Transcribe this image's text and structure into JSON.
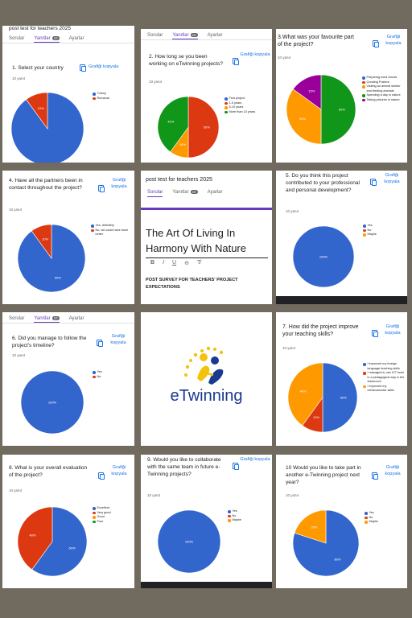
{
  "colors": {
    "blue": "#3366cc",
    "red": "#dc3912",
    "orange": "#ff9900",
    "green": "#109618",
    "purple": "#990099"
  },
  "card1": {
    "header": "post test for teachers 2025",
    "tabs": [
      "Sorular",
      "Yanıtlar",
      "Ayarlar"
    ],
    "badge": "10",
    "question": "1. Select your country",
    "grafik": "Grafiği kopyala",
    "points": "10 yanıt",
    "legend": [
      "Turkey",
      "Romania"
    ]
  },
  "card2": {
    "tabs": [
      "Sorular",
      "Yanıtlar",
      "Ayarlar"
    ],
    "badge": "10",
    "question": "2. How long se you been working on eTwinning projects?",
    "grafik": "Grafiği kopyala",
    "points": "10 yanıt",
    "legend": [
      "First project",
      "1-5 years",
      "5-10 years",
      "More than 10 years"
    ]
  },
  "card3": {
    "question": "3.What was your favourite part of the project?",
    "grafik": "Grafiği kopyala",
    "points": "10 yanıt",
    "legend": [
      "Preparing word clouds",
      "Creating Posters",
      "Visiting an animal shelter and feeding animals",
      "Spending a day in nature",
      "Taking pictures in nature"
    ]
  },
  "card4": {
    "question": "4. Have all the partners been in contact throughout the project?",
    "grafik": "Grafiği kopyala",
    "points": "10 yanıt",
    "legend": [
      "Yes, definitely",
      "No, we could have done better"
    ]
  },
  "card5": {
    "title": "post test for teachers 2025",
    "tabs": [
      "Sorular",
      "Yanıtlar",
      "Ayarlar"
    ],
    "badge": "10",
    "form_title": "The Art Of Living In Harmony With Nature",
    "toolbar": [
      "B",
      "I",
      "U",
      "⊖",
      "T̸"
    ],
    "description": "POST SURVEY FOR TEACHERS' PROJECT EXPECTATIONS"
  },
  "card6": {
    "question": "5. Do you think this project contributed to your professional and personal development?",
    "grafik": "Grafiği kopyala",
    "points": "10 yanıt",
    "legend": [
      "Yes",
      "No",
      "Maybe"
    ]
  },
  "card7": {
    "tabs": [
      "Sorular",
      "Yanıtlar",
      "Ayarlar"
    ],
    "badge": "10",
    "question": "6. Did you manage to follow the project's timeline?",
    "grafik": "Grafiği kopyala",
    "points": "10 yanıt",
    "legend": [
      "Yes",
      "No"
    ]
  },
  "card8": {
    "logo_text": "eTwinning"
  },
  "card9": {
    "question": "7. How did the project improve your teaching skills?",
    "grafik": "Grafiği kopyala",
    "points": "10 yanıt",
    "legend": [
      "I improved my foreign language teaching skills",
      "I managed to use ICT tools in a pedagogical way in the classroom",
      "I improved my extracurricular skills"
    ]
  },
  "card10": {
    "question": "8. What is your overall evaluation of the project?",
    "grafik": "Grafiği kopyala",
    "points": "10 yanıt",
    "legend": [
      "Excellent",
      "Very good",
      "Good",
      "Poor"
    ]
  },
  "card11": {
    "question": "9. Would you like to collaborate with the same team in future e-Twinning projects?",
    "grafik": "Grafiği kopyala",
    "points": "10 yanıt",
    "legend": [
      "Yes",
      "No",
      "Maybe"
    ]
  },
  "card12": {
    "question": "10 Would you like to take part in another e-Twinning project next year?",
    "grafik": "Grafiği kopyala",
    "points": "10 yanıt",
    "legend": [
      "Yes",
      "No",
      "Maybe"
    ]
  },
  "chart_data": [
    {
      "type": "pie",
      "title": "1. Select your country",
      "categories": [
        "Turkey",
        "Romania"
      ],
      "values": [
        90,
        10
      ],
      "labels": [
        "",
        "10%"
      ]
    },
    {
      "type": "pie",
      "title": "2. How long se you been working on eTwinning projects?",
      "categories": [
        "First project",
        "1-5 years",
        "5-10 years",
        "More than 10 years"
      ],
      "values": [
        0,
        50,
        10,
        40
      ],
      "labels": [
        "",
        "50%",
        "10%",
        "40%"
      ]
    },
    {
      "type": "pie",
      "title": "3.What was your favourite part of the project?",
      "categories": [
        "Preparing word clouds",
        "Creating Posters",
        "Visiting an animal shelter and feeding animals",
        "Spending a day in nature",
        "Taking pictures in nature"
      ],
      "values": [
        0,
        0,
        50,
        35,
        15
      ],
      "labels": [
        "",
        "",
        "50%",
        "35%",
        "15%"
      ],
      "colors": [
        "blue",
        "red",
        "green",
        "orange",
        "purple"
      ],
      "order": [
        2,
        3,
        4
      ]
    },
    {
      "type": "pie",
      "title": "4. Have all the partners been in contact throughout the project?",
      "categories": [
        "Yes, definitely",
        "No, we could have done better"
      ],
      "values": [
        90,
        10
      ],
      "labels": [
        "90%",
        "10%"
      ]
    },
    {
      "type": "pie",
      "title": "5. Do you think this project contributed to your professional and personal development?",
      "categories": [
        "Yes",
        "No",
        "Maybe"
      ],
      "values": [
        100,
        0,
        0
      ],
      "labels": [
        "100%",
        "",
        ""
      ]
    },
    {
      "type": "pie",
      "title": "6. Did you manage to follow the project's timeline?",
      "categories": [
        "Yes",
        "No"
      ],
      "values": [
        100,
        0
      ],
      "labels": [
        "100%",
        ""
      ]
    },
    {
      "type": "pie",
      "title": "7. How did the project improve your teaching skills?",
      "categories": [
        "I improved my foreign language teaching skills",
        "I managed to use ICT tools in a pedagogical way in the classroom",
        "I improved my extracurricular skills"
      ],
      "values": [
        50,
        10,
        40
      ],
      "labels": [
        "50%",
        "10%",
        "40%"
      ]
    },
    {
      "type": "pie",
      "title": "8. What is your overall evaluation of the project?",
      "categories": [
        "Excellent",
        "Very good",
        "Good",
        "Poor"
      ],
      "values": [
        60,
        40,
        0,
        0
      ],
      "labels": [
        "60%",
        "40%",
        "",
        ""
      ]
    },
    {
      "type": "pie",
      "title": "9. Would you like to collaborate with the same team in future e-Twinning projects?",
      "categories": [
        "Yes",
        "No",
        "Maybe"
      ],
      "values": [
        100,
        0,
        0
      ],
      "labels": [
        "100%",
        "",
        ""
      ]
    },
    {
      "type": "pie",
      "title": "10 Would you like to take part in another e-Twinning project next year?",
      "categories": [
        "Yes",
        "No",
        "Maybe"
      ],
      "values": [
        80,
        0,
        20
      ],
      "labels": [
        "80%",
        "",
        "20%"
      ]
    }
  ]
}
